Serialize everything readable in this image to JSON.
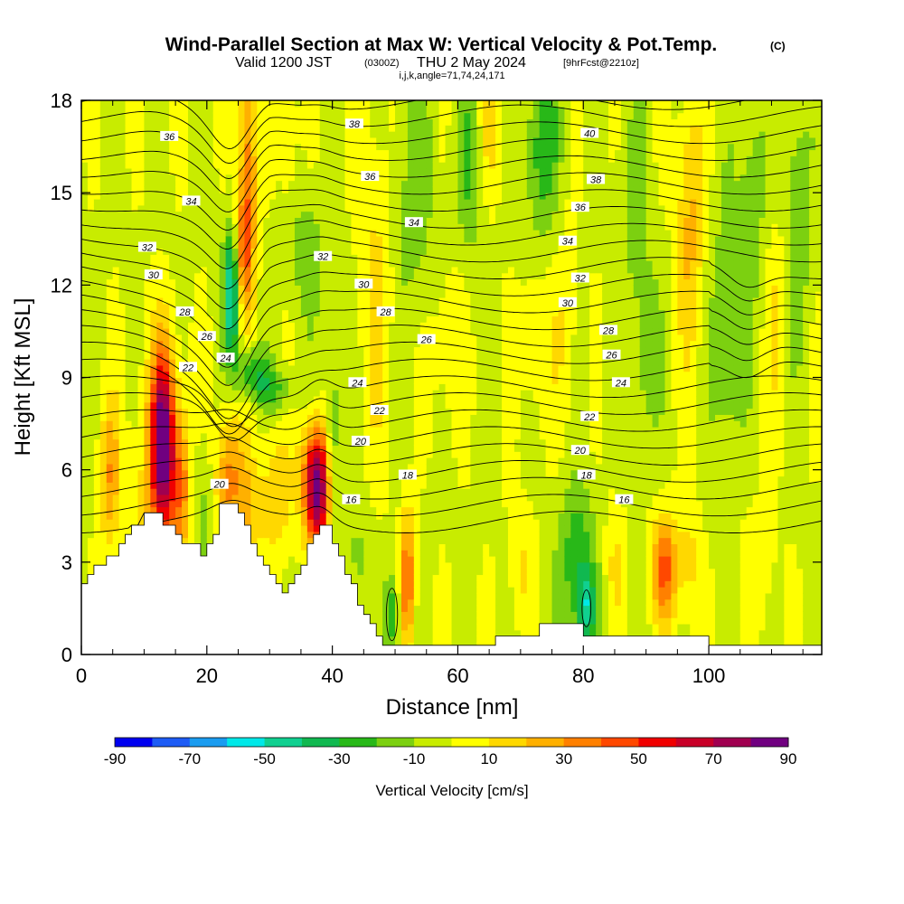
{
  "header": {
    "title_main": "Wind-Parallel Section at Max W: Vertical Velocity & Pot.Temp.",
    "title_mark": "(C)",
    "valid_prefix": "Valid 1200 JST",
    "valid_zulu": "(0300Z)",
    "valid_date": "THU 2 May 2024",
    "forecast_info": "[9hrFcst@2210z]",
    "params": "i,j,k,angle=71,74,24,171"
  },
  "chart_data": {
    "type": "heatmap",
    "xlabel": "Distance [nm]",
    "ylabel": "Height [Kft MSL]",
    "xlim": [
      0,
      118
    ],
    "ylim": [
      0,
      18
    ],
    "x_ticks": [
      0,
      20,
      40,
      60,
      80,
      100
    ],
    "x_tick_labels": [
      "0",
      "20",
      "40",
      "60",
      "80",
      "100"
    ],
    "y_ticks": [
      0,
      3,
      6,
      9,
      12,
      15,
      18
    ],
    "y_tick_labels": [
      "0",
      "3",
      "6",
      "9",
      "12",
      "15",
      "18"
    ],
    "colorbar": {
      "label": "Vertical Velocity [cm/s]",
      "levels": [
        -90,
        -80,
        -70,
        -60,
        -50,
        -40,
        -30,
        -20,
        -10,
        0,
        10,
        20,
        30,
        40,
        50,
        60,
        70,
        80,
        90
      ],
      "tick_labels": [
        "-90",
        "-70",
        "-50",
        "-30",
        "-10",
        "10",
        "30",
        "50",
        "70",
        "90"
      ],
      "colors": [
        "#0000f0",
        "#1e5cf5",
        "#1a9cf0",
        "#00e8e8",
        "#10d090",
        "#10b850",
        "#28b818",
        "#7cd010",
        "#c8ec00",
        "#ffff00",
        "#ffd800",
        "#ffb000",
        "#ff8000",
        "#ff4800",
        "#f00000",
        "#c80028",
        "#a00050",
        "#700080"
      ]
    },
    "theta_contours_labels": [
      "16",
      "18",
      "20",
      "22",
      "24",
      "26",
      "28",
      "30",
      "32",
      "34",
      "36",
      "38",
      "40"
    ],
    "theta_levels": [
      16,
      17,
      18,
      19,
      20,
      21,
      22,
      23,
      24,
      25,
      26,
      27,
      28,
      29,
      30,
      31,
      32,
      33,
      34,
      35,
      36,
      37,
      38,
      39,
      40,
      41
    ],
    "terrain_profile": {
      "x": [
        0,
        1,
        2,
        3,
        4,
        5,
        6,
        7,
        8,
        9,
        10,
        11,
        12,
        13,
        14,
        15,
        16,
        17,
        18,
        19,
        20,
        21,
        22,
        23,
        24,
        25,
        26,
        27,
        28,
        29,
        30,
        31,
        32,
        33,
        34,
        35,
        36,
        37,
        38,
        39,
        40,
        41,
        42,
        43,
        44,
        45,
        46,
        47,
        48,
        50,
        55,
        60,
        65,
        66,
        67,
        70,
        73,
        76,
        79,
        80,
        85,
        90,
        95,
        98,
        99,
        100,
        105,
        110,
        115,
        118
      ],
      "y": [
        2.3,
        2.6,
        2.9,
        2.9,
        3.2,
        3.2,
        3.6,
        3.9,
        4.2,
        4.2,
        4.6,
        4.6,
        4.6,
        4.2,
        4.2,
        3.9,
        3.6,
        3.6,
        3.6,
        3.2,
        3.6,
        3.9,
        4.9,
        4.9,
        4.9,
        4.6,
        4.2,
        3.6,
        3.2,
        2.9,
        2.6,
        2.3,
        2.0,
        2.3,
        2.6,
        2.9,
        3.6,
        3.9,
        4.2,
        4.2,
        3.6,
        3.2,
        2.6,
        2.3,
        1.6,
        1.3,
        1.0,
        0.6,
        0.3,
        0.3,
        0.3,
        0.3,
        0.3,
        0.6,
        0.6,
        0.6,
        1.0,
        1.0,
        1.0,
        0.6,
        0.6,
        0.6,
        0.6,
        0.6,
        0.6,
        0.3,
        0.3,
        0.3,
        0.3,
        0.3
      ]
    },
    "w_features": [
      {
        "x": 13,
        "z": 7.0,
        "sx": 1.3,
        "sz": 2.0,
        "w": 75
      },
      {
        "x": 13,
        "z": 5.5,
        "sx": 3.0,
        "sz": 3.0,
        "w": 25
      },
      {
        "x": 4.5,
        "z": 5.8,
        "sx": 1.2,
        "sz": 1.7,
        "w": 30
      },
      {
        "x": 16,
        "z": 5.5,
        "sx": 1.0,
        "sz": 1.5,
        "w": 25
      },
      {
        "x": 19,
        "z": 4.8,
        "sx": 1.2,
        "sz": 1.8,
        "w": -14
      },
      {
        "x": 23.5,
        "z": 5.7,
        "sx": 1.5,
        "sz": 1.6,
        "w": 35
      },
      {
        "x": 26.5,
        "z": 4.5,
        "sx": 1.3,
        "sz": 1.5,
        "w": 20
      },
      {
        "x": 26.5,
        "z": 15.5,
        "sx": 1.0,
        "sz": 3.0,
        "w": 40
      },
      {
        "x": 25.5,
        "z": 13.0,
        "sx": 1.0,
        "sz": 1.2,
        "w": 30
      },
      {
        "x": 24,
        "z": 11.8,
        "sx": 0.9,
        "sz": 1.5,
        "w": -55
      },
      {
        "x": 27,
        "z": 9.2,
        "sx": 1.8,
        "sz": 0.6,
        "w": -30
      },
      {
        "x": 31,
        "z": 8.6,
        "sx": 2.5,
        "sz": 0.5,
        "w": -20
      },
      {
        "x": 31,
        "z": 5.2,
        "sx": 2.0,
        "sz": 1.5,
        "w": 20
      },
      {
        "x": 37.5,
        "z": 5.8,
        "sx": 1.5,
        "sz": 1.2,
        "w": 80
      },
      {
        "x": 38,
        "z": 4.3,
        "sx": 1.5,
        "sz": 1.0,
        "w": 30
      },
      {
        "x": 40,
        "z": 6.5,
        "sx": 0.8,
        "sz": 2.5,
        "w": -25
      },
      {
        "x": 36,
        "z": 13.0,
        "sx": 2.0,
        "sz": 1.5,
        "w": -15
      },
      {
        "x": 33,
        "z": 17.0,
        "sx": 1.0,
        "sz": 1.5,
        "w": 15
      },
      {
        "x": 44,
        "z": 3.0,
        "sx": 1.5,
        "sz": 1.5,
        "w": -12
      },
      {
        "x": 49.5,
        "z": 1.3,
        "sx": 0.8,
        "sz": 0.9,
        "w": -30
      },
      {
        "x": 52,
        "z": 2.5,
        "sx": 0.8,
        "sz": 1.5,
        "w": 45
      },
      {
        "x": 47,
        "z": 12.0,
        "sx": 2.0,
        "sz": 4.0,
        "w": 15
      },
      {
        "x": 53,
        "z": 15.0,
        "sx": 2.5,
        "sz": 3.0,
        "w": -14
      },
      {
        "x": 58,
        "z": 10.0,
        "sx": 2.0,
        "sz": 2.0,
        "w": 10
      },
      {
        "x": 62,
        "z": 16.0,
        "sx": 1.5,
        "sz": 2.0,
        "w": -20
      },
      {
        "x": 65,
        "z": 17.0,
        "sx": 1.5,
        "sz": 1.5,
        "w": 15
      },
      {
        "x": 70,
        "z": 3.0,
        "sx": 1.5,
        "sz": 1.5,
        "w": 12
      },
      {
        "x": 72,
        "z": 10.2,
        "sx": 1.5,
        "sz": 1.5,
        "w": 15
      },
      {
        "x": 73.5,
        "z": 16.5,
        "sx": 2.0,
        "sz": 2.0,
        "w": -25
      },
      {
        "x": 77,
        "z": 10.5,
        "sx": 1.5,
        "sz": 2.5,
        "w": 12
      },
      {
        "x": 79,
        "z": 3.0,
        "sx": 2.0,
        "sz": 1.8,
        "w": -28
      },
      {
        "x": 80.5,
        "z": 1.5,
        "sx": 1.0,
        "sz": 0.8,
        "w": -32
      },
      {
        "x": 85,
        "z": 3.0,
        "sx": 1.2,
        "sz": 1.5,
        "w": 12
      },
      {
        "x": 88,
        "z": 15.0,
        "sx": 1.5,
        "sz": 2.0,
        "w": -15
      },
      {
        "x": 90,
        "z": 10.0,
        "sx": 1.5,
        "sz": 2.0,
        "w": -18
      },
      {
        "x": 93,
        "z": 2.8,
        "sx": 1.5,
        "sz": 1.2,
        "w": 45
      },
      {
        "x": 97,
        "z": 3.0,
        "sx": 1.2,
        "sz": 1.5,
        "w": 15
      },
      {
        "x": 97,
        "z": 14.0,
        "sx": 1.5,
        "sz": 3.0,
        "w": 25
      },
      {
        "x": 103,
        "z": 10.5,
        "sx": 1.8,
        "sz": 3.0,
        "w": -20
      },
      {
        "x": 107,
        "z": 15.0,
        "sx": 1.5,
        "sz": 2.5,
        "w": -15
      },
      {
        "x": 111,
        "z": 11.0,
        "sx": 1.5,
        "sz": 2.5,
        "w": 12
      },
      {
        "x": 114,
        "z": 14.0,
        "sx": 1.5,
        "sz": 3.0,
        "w": -18
      },
      {
        "x": 108,
        "z": 3.0,
        "sx": 2.0,
        "sz": 1.5,
        "w": 10
      }
    ]
  }
}
